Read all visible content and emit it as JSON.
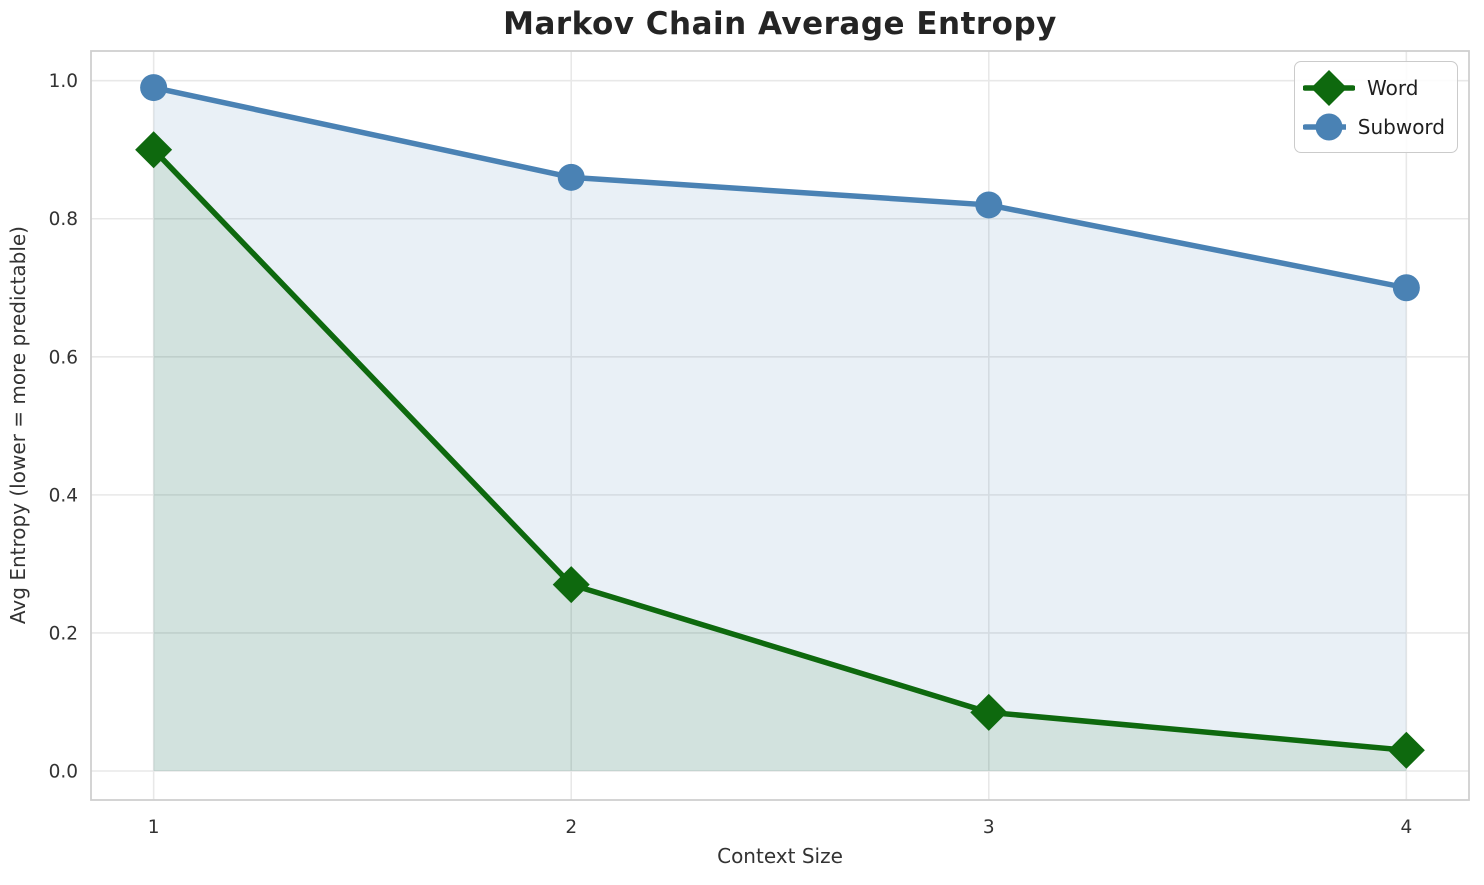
{
  "chart_data": {
    "type": "line",
    "title": "Markov Chain Average Entropy",
    "xlabel": "Context Size",
    "ylabel": "Avg Entropy (lower = more predictable)",
    "x": [
      1,
      2,
      3,
      4
    ],
    "series": [
      {
        "name": "Word",
        "marker": "diamond",
        "color": "#0e690e",
        "line_width": 5.5,
        "fill_opacity": 0.1,
        "values": [
          0.9,
          0.27,
          0.085,
          0.03
        ]
      },
      {
        "name": "Subword",
        "marker": "circle",
        "color": "#4a82b4",
        "line_width": 5.5,
        "fill_opacity": 0.12,
        "values": [
          0.99,
          0.86,
          0.82,
          0.7
        ]
      }
    ],
    "xlim": [
      0.85,
      4.15
    ],
    "ylim": [
      -0.042,
      1.043
    ],
    "xticks": [
      1,
      2,
      3,
      4
    ],
    "xtick_labels": [
      "1",
      "2",
      "3",
      "4"
    ],
    "yticks": [
      0.0,
      0.2,
      0.4,
      0.6,
      0.8,
      1.0
    ],
    "ytick_labels": [
      "0.0",
      "0.2",
      "0.4",
      "0.6",
      "0.8",
      "1.0"
    ],
    "grid": true,
    "grid_color": "#e8e8e8",
    "spine_color": "#cfcfcf",
    "area_fill_to_zero": true,
    "legend_position": "top-right"
  }
}
